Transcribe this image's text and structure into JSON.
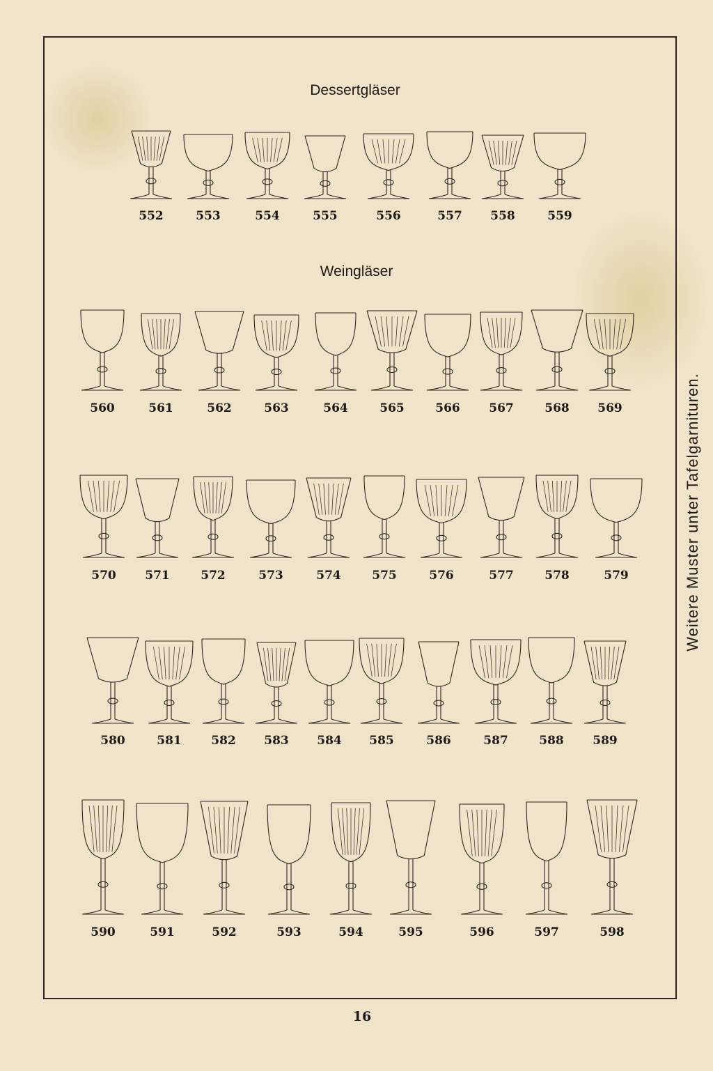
{
  "sections": [
    {
      "title": "Dessertgläser"
    },
    {
      "title": "Weingläser"
    }
  ],
  "rows": [
    {
      "numbers": [
        "552",
        "553",
        "554",
        "555",
        "556",
        "557",
        "558",
        "559"
      ]
    },
    {
      "numbers": [
        "560",
        "561",
        "562",
        "563",
        "564",
        "565",
        "566",
        "567",
        "568",
        "569"
      ]
    },
    {
      "numbers": [
        "570",
        "571",
        "572",
        "573",
        "574",
        "575",
        "576",
        "577",
        "578",
        "579"
      ]
    },
    {
      "numbers": [
        "580",
        "581",
        "582",
        "583",
        "584",
        "585",
        "586",
        "587",
        "588",
        "589"
      ]
    },
    {
      "numbers": [
        "590",
        "591",
        "592",
        "593",
        "594",
        "595",
        "596",
        "597",
        "598"
      ]
    }
  ],
  "side_note": "Weitere Muster unter Tafelgarnituren.",
  "page_number": "16",
  "colors": {
    "paper": "#efe4c9",
    "ink": "#1d1a16"
  }
}
